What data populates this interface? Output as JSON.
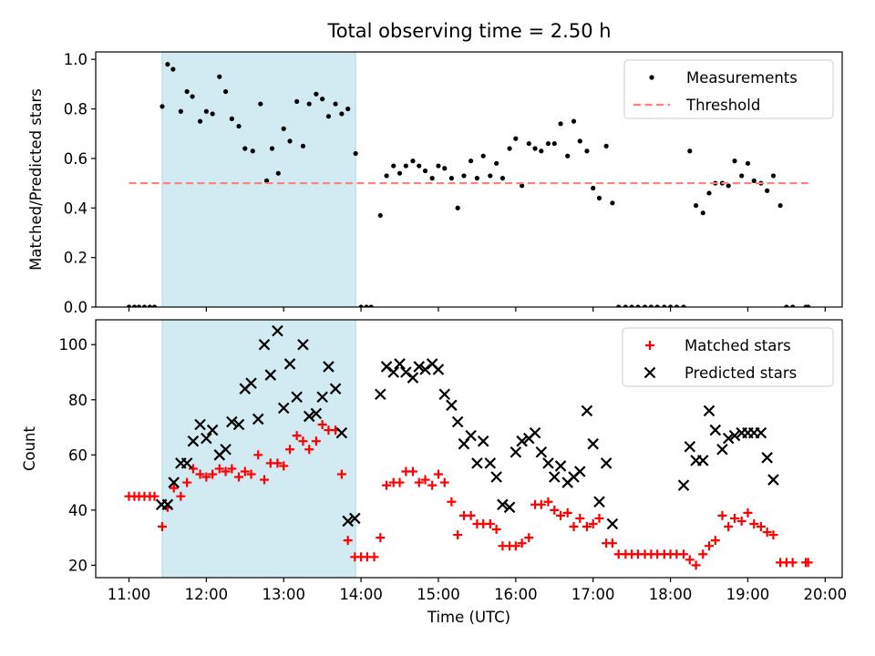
{
  "title": "Total observing time = 2.50 h",
  "chart_data": [
    {
      "type": "scatter",
      "ylabel": "Matched/Predicted stars",
      "ylim": [
        0,
        1.03
      ],
      "yticks": [
        "0.0",
        "0.2",
        "0.4",
        "0.6",
        "0.8",
        "1.0"
      ],
      "xlim": [
        10.57,
        20.22
      ],
      "shaded_span": [
        11.43,
        13.93
      ],
      "shade_color": "#add8e6",
      "legend": "top-right",
      "series": [
        {
          "name": "Measurements",
          "kind": "points",
          "color": "#000000",
          "x": [
            11.0,
            11.07,
            11.13,
            11.2,
            11.27,
            11.33,
            11.43,
            11.5,
            11.57,
            11.67,
            11.75,
            11.82,
            11.92,
            12.0,
            12.08,
            12.17,
            12.25,
            12.33,
            12.42,
            12.5,
            12.6,
            12.7,
            12.78,
            12.85,
            12.93,
            13.0,
            13.08,
            13.17,
            13.25,
            13.33,
            13.42,
            13.5,
            13.58,
            13.67,
            13.75,
            13.83,
            13.93,
            14.0,
            14.07,
            14.13,
            14.25,
            14.33,
            14.42,
            14.5,
            14.58,
            14.67,
            14.75,
            14.83,
            14.92,
            15.0,
            15.08,
            15.17,
            15.25,
            15.33,
            15.42,
            15.5,
            15.58,
            15.67,
            15.75,
            15.83,
            15.92,
            16.0,
            16.08,
            16.17,
            16.25,
            16.33,
            16.42,
            16.5,
            16.58,
            16.67,
            16.75,
            16.83,
            16.92,
            17.0,
            17.08,
            17.17,
            17.25,
            17.33,
            17.42,
            17.5,
            17.58,
            17.67,
            17.75,
            17.83,
            17.92,
            18.0,
            18.08,
            18.17,
            18.25,
            18.33,
            18.42,
            18.5,
            18.58,
            18.67,
            18.75,
            18.83,
            18.92,
            19.0,
            19.08,
            19.17,
            19.25,
            19.33,
            19.42,
            19.5,
            19.58,
            19.75,
            19.78
          ],
          "y": [
            0.0,
            0.0,
            0.0,
            0.0,
            0.0,
            0.0,
            0.81,
            0.98,
            0.96,
            0.79,
            0.87,
            0.85,
            0.75,
            0.79,
            0.78,
            0.93,
            0.87,
            0.76,
            0.73,
            0.64,
            0.63,
            0.82,
            0.51,
            0.64,
            0.54,
            0.72,
            0.67,
            0.83,
            0.65,
            0.82,
            0.86,
            0.84,
            0.77,
            0.82,
            0.78,
            0.8,
            0.62,
            0.0,
            0.0,
            0.0,
            0.37,
            0.53,
            0.57,
            0.54,
            0.57,
            0.59,
            0.57,
            0.55,
            0.52,
            0.57,
            0.56,
            0.52,
            0.4,
            0.53,
            0.59,
            0.52,
            0.61,
            0.53,
            0.58,
            0.52,
            0.64,
            0.68,
            0.49,
            0.66,
            0.64,
            0.63,
            0.66,
            0.66,
            0.74,
            0.61,
            0.75,
            0.67,
            0.63,
            0.48,
            0.44,
            0.65,
            0.42,
            0.0,
            0.0,
            0.0,
            0.0,
            0.0,
            0.0,
            0.0,
            0.0,
            0.0,
            0.0,
            0.0,
            0.63,
            0.41,
            0.38,
            0.46,
            0.5,
            0.5,
            0.49,
            0.59,
            0.53,
            0.58,
            0.51,
            0.5,
            0.47,
            0.53,
            0.41,
            0.0,
            0.0,
            0.0,
            0.0
          ]
        },
        {
          "name": "Threshold",
          "kind": "dashed-line",
          "color": "#ff7f7f",
          "x": [
            11.0,
            19.78
          ],
          "y": [
            0.5,
            0.5
          ]
        }
      ]
    },
    {
      "type": "scatter",
      "ylabel": "Count",
      "xlabel": "Time (UTC)",
      "ylim": [
        15.5,
        109
      ],
      "yticks": [
        "20",
        "40",
        "60",
        "80",
        "100"
      ],
      "xticks": [
        "11:00",
        "12:00",
        "13:00",
        "14:00",
        "15:00",
        "16:00",
        "17:00",
        "18:00",
        "19:00",
        "20:00"
      ],
      "xlim": [
        10.57,
        20.22
      ],
      "shaded_span": [
        11.43,
        13.93
      ],
      "shade_color": "#add8e6",
      "legend": "top-right",
      "series": [
        {
          "name": "Matched stars",
          "marker": "plus",
          "color": "#ff0000",
          "x": [
            11.0,
            11.07,
            11.13,
            11.2,
            11.27,
            11.33,
            11.43,
            11.5,
            11.58,
            11.67,
            11.75,
            11.83,
            11.92,
            12.0,
            12.08,
            12.17,
            12.25,
            12.33,
            12.42,
            12.5,
            12.58,
            12.67,
            12.75,
            12.83,
            12.92,
            13.0,
            13.08,
            13.17,
            13.25,
            13.33,
            13.42,
            13.5,
            13.58,
            13.67,
            13.75,
            13.83,
            13.92,
            14.0,
            14.08,
            14.17,
            14.25,
            14.33,
            14.42,
            14.5,
            14.58,
            14.67,
            14.75,
            14.83,
            14.92,
            15.0,
            15.08,
            15.17,
            15.25,
            15.33,
            15.42,
            15.5,
            15.58,
            15.67,
            15.75,
            15.83,
            15.92,
            16.0,
            16.08,
            16.17,
            16.25,
            16.33,
            16.42,
            16.5,
            16.58,
            16.67,
            16.75,
            16.83,
            16.92,
            17.0,
            17.08,
            17.17,
            17.25,
            17.33,
            17.42,
            17.5,
            17.58,
            17.67,
            17.75,
            17.83,
            17.92,
            18.0,
            18.08,
            18.17,
            18.25,
            18.33,
            18.42,
            18.5,
            18.58,
            18.67,
            18.75,
            18.83,
            18.92,
            19.0,
            19.08,
            19.17,
            19.25,
            19.33,
            19.42,
            19.5,
            19.58,
            19.75,
            19.78
          ],
          "y": [
            45,
            45,
            45,
            45,
            45,
            45,
            34,
            41,
            48,
            45,
            50,
            55,
            53,
            52,
            53,
            55,
            54,
            55,
            52,
            54,
            53,
            60,
            51,
            57,
            57,
            56,
            62,
            67,
            65,
            62,
            65,
            71,
            69,
            69,
            53,
            29,
            23,
            23,
            23,
            23,
            30,
            49,
            50,
            50,
            54,
            54,
            50,
            51,
            49,
            53,
            50,
            43,
            31,
            38,
            38,
            35,
            35,
            35,
            33,
            27,
            27,
            27,
            28,
            30,
            42,
            42,
            43,
            40,
            38,
            39,
            34,
            37,
            34,
            35,
            37,
            28,
            28,
            24,
            24,
            24,
            24,
            24,
            24,
            24,
            24,
            24,
            24,
            24,
            22,
            20,
            24,
            27,
            29,
            38,
            34,
            37,
            36,
            39,
            35,
            34,
            32,
            31,
            21,
            21,
            21,
            21,
            21
          ]
        },
        {
          "name": "Predicted stars",
          "marker": "x",
          "color": "#000000",
          "x": [
            11.42,
            11.5,
            11.58,
            11.67,
            11.75,
            11.83,
            11.92,
            12.0,
            12.08,
            12.17,
            12.25,
            12.33,
            12.42,
            12.5,
            12.58,
            12.67,
            12.75,
            12.83,
            12.92,
            13.0,
            13.08,
            13.17,
            13.25,
            13.33,
            13.42,
            13.5,
            13.58,
            13.67,
            13.75,
            13.83,
            13.92,
            14.25,
            14.33,
            14.42,
            14.5,
            14.58,
            14.67,
            14.75,
            14.83,
            14.92,
            15.0,
            15.08,
            15.17,
            15.25,
            15.33,
            15.42,
            15.5,
            15.58,
            15.67,
            15.75,
            15.83,
            15.92,
            16.0,
            16.08,
            16.17,
            16.25,
            16.33,
            16.42,
            16.5,
            16.58,
            16.67,
            16.75,
            16.83,
            16.92,
            17.0,
            17.08,
            17.17,
            17.25,
            18.17,
            18.25,
            18.33,
            18.42,
            18.5,
            18.58,
            18.67,
            18.75,
            18.83,
            18.92,
            19.0,
            19.08,
            19.17,
            19.25,
            19.33
          ],
          "y": [
            42,
            42,
            50,
            57,
            57,
            65,
            71,
            66,
            69,
            60,
            62,
            72,
            71,
            84,
            86,
            73,
            100,
            89,
            105,
            77,
            93,
            81,
            100,
            74,
            75,
            81,
            92,
            84,
            68,
            36,
            37,
            82,
            92,
            90,
            93,
            90,
            88,
            92,
            91,
            93,
            91,
            82,
            78,
            72,
            64,
            67,
            57,
            65,
            57,
            52,
            42,
            41,
            61,
            65,
            66,
            68,
            61,
            57,
            52,
            56,
            50,
            52,
            54,
            76,
            64,
            43,
            57,
            35,
            49,
            63,
            58,
            58,
            76,
            69,
            62,
            66,
            67,
            68,
            68,
            68,
            68,
            59,
            51
          ]
        }
      ]
    }
  ]
}
